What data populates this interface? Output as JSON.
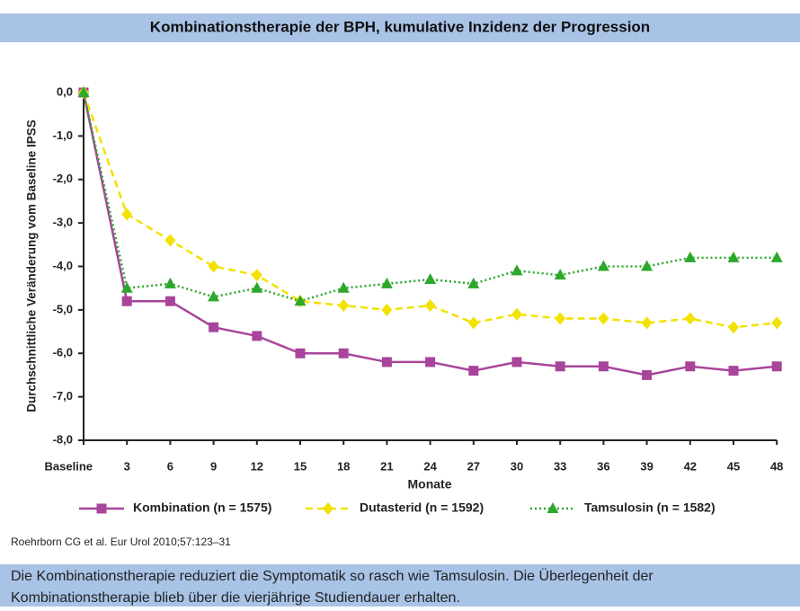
{
  "chart_data": {
    "type": "line",
    "title": "Kombinationstherapie der BPH, kumulative Inzidenz der Progression",
    "y_label": "Durchschnittliche Veränderung vom Baseline IPSS",
    "x_label": "Monate",
    "source": "Roehrborn CG et al. Eur Urol 2010;57:123–31",
    "caption": [
      "Die Kombinationstherapie reduziert die Symptomatik so rasch wie Tamsulosin. Die Überlegenheit der",
      "Kombinationstherapie blieb über die vierjährige Studiendauer erhalten."
    ],
    "categories": [
      "Baseline",
      "3",
      "6",
      "9",
      "12",
      "15",
      "18",
      "21",
      "24",
      "27",
      "30",
      "33",
      "36",
      "39",
      "42",
      "45",
      "48"
    ],
    "series": [
      {
        "name": "Kombination (n = 1575)",
        "color": "#a8459b",
        "marker": "square",
        "dash": "solid",
        "values": [
          0,
          -4.8,
          -4.8,
          -5.4,
          -5.6,
          -6.0,
          -6.0,
          -6.2,
          -6.2,
          -6.4,
          -6.2,
          -6.3,
          -6.3,
          -6.5,
          -6.3,
          -6.4,
          -6.3
        ]
      },
      {
        "name": "Dutasterid (n = 1592)",
        "color": "#f2e200",
        "marker": "diamond",
        "dash": "dashed",
        "values": [
          0,
          -2.8,
          -3.4,
          -4.0,
          -4.2,
          -4.8,
          -4.9,
          -5.0,
          -4.9,
          -5.3,
          -5.1,
          -5.2,
          -5.2,
          -5.3,
          -5.2,
          -5.4,
          -5.3
        ]
      },
      {
        "name": "Tamsulosin (n = 1582)",
        "color": "#2ca82c",
        "marker": "triangle",
        "dash": "dotted",
        "values": [
          0,
          -4.5,
          -4.4,
          -4.7,
          -4.5,
          -4.8,
          -4.5,
          -4.4,
          -4.3,
          -4.4,
          -4.1,
          -4.2,
          -4.0,
          -4.0,
          -3.8,
          -3.8,
          -3.8
        ]
      }
    ],
    "ylim": [
      -8,
      0
    ],
    "yticks": [
      {
        "value": 0,
        "label": "0,0"
      },
      {
        "value": -1,
        "label": "-1,0"
      },
      {
        "value": -2,
        "label": "-2,0"
      },
      {
        "value": -3,
        "label": "-3,0"
      },
      {
        "value": -4,
        "label": "-4,0"
      },
      {
        "value": -5,
        "label": "-5,0"
      },
      {
        "value": -6,
        "label": "-6,0"
      },
      {
        "value": -7,
        "label": "-7,0"
      },
      {
        "value": -8,
        "label": "-8,0"
      }
    ],
    "grid": false
  }
}
